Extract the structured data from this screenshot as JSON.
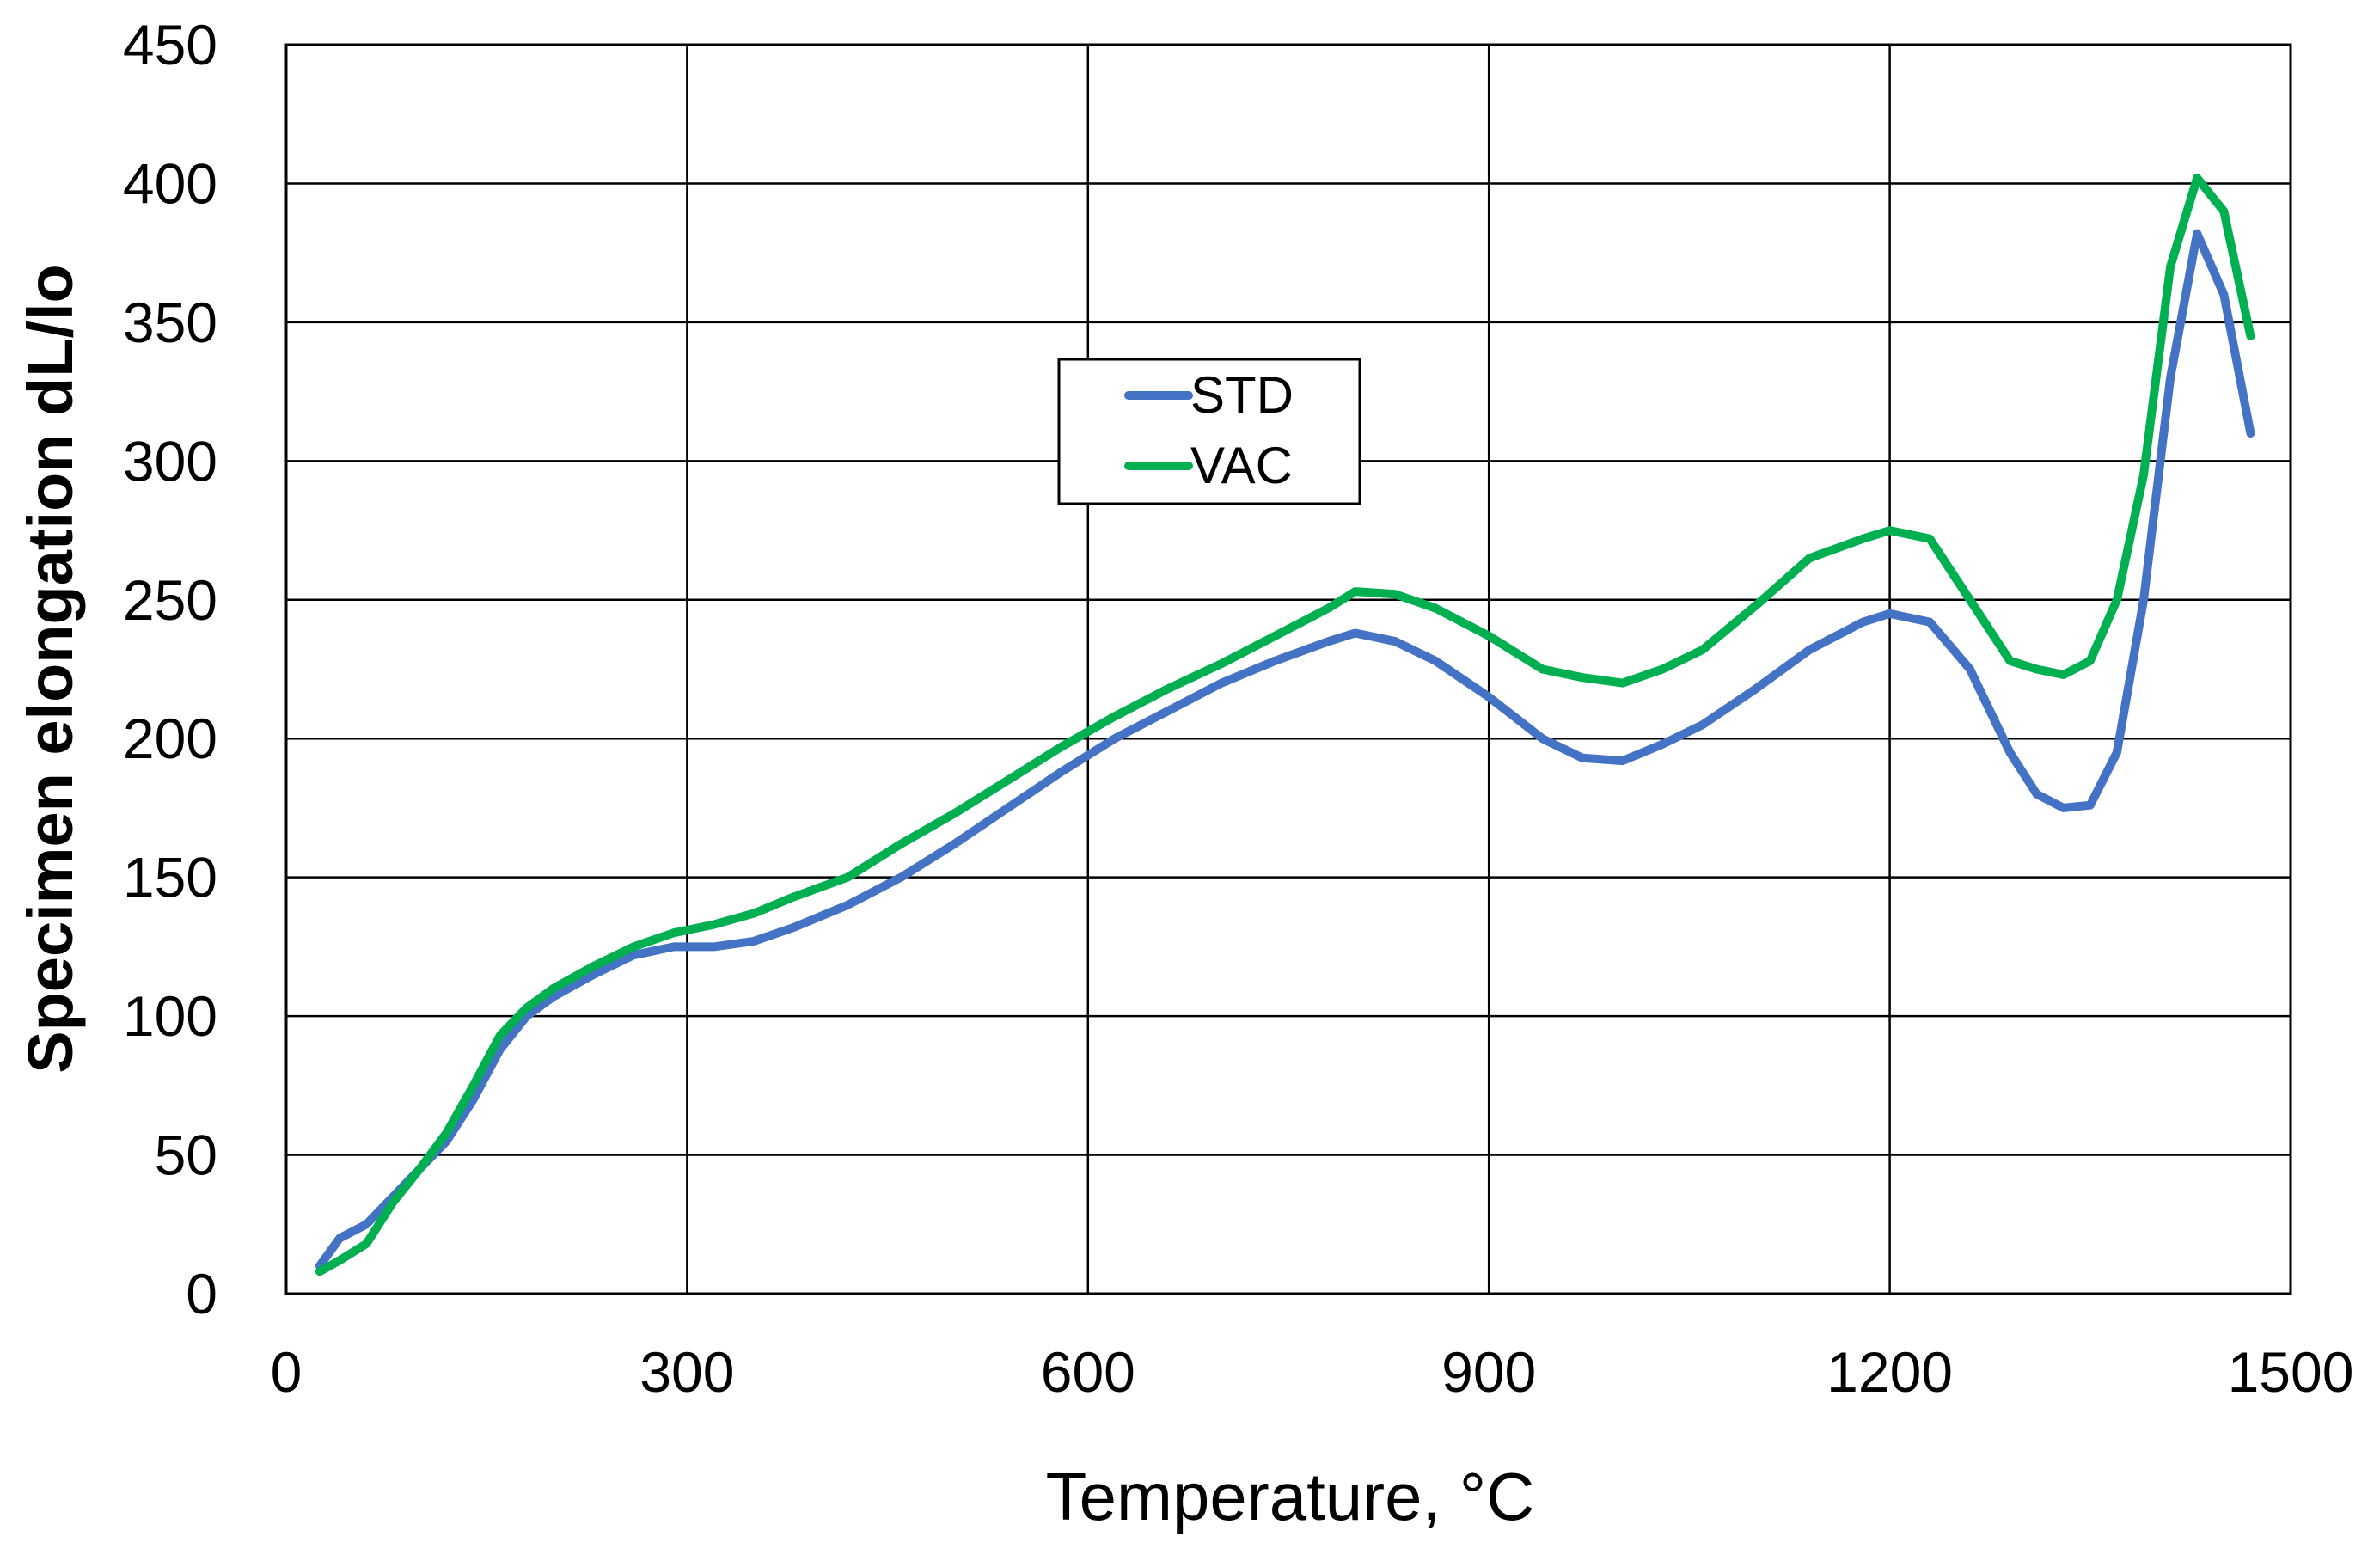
{
  "chart_data": {
    "type": "line",
    "title": "",
    "xlabel": "Temperature, °C",
    "ylabel": "Specimen elongation dL/lo",
    "xlim": [
      0,
      1500
    ],
    "ylim": [
      0,
      450
    ],
    "xticks": [
      0,
      300,
      600,
      900,
      1200,
      1500
    ],
    "yticks": [
      0,
      50,
      100,
      150,
      200,
      250,
      300,
      350,
      400,
      450
    ],
    "xtick_labels": [
      "0",
      "300",
      "600",
      "900",
      "1200",
      "1500"
    ],
    "ytick_labels": [
      "0",
      "50",
      "100",
      "150",
      "200",
      "250",
      "300",
      "350",
      "400",
      "450"
    ],
    "grid": true,
    "legend_position": "center",
    "series": [
      {
        "name": "STD",
        "color": "#4472C4",
        "x": [
          25,
          40,
          60,
          80,
          100,
          120,
          140,
          160,
          180,
          200,
          230,
          260,
          290,
          320,
          350,
          380,
          420,
          460,
          500,
          540,
          580,
          620,
          660,
          700,
          740,
          780,
          800,
          830,
          860,
          900,
          940,
          970,
          1000,
          1030,
          1060,
          1100,
          1140,
          1180,
          1200,
          1230,
          1260,
          1290,
          1310,
          1330,
          1350,
          1370,
          1390,
          1410,
          1430,
          1450,
          1470
        ],
        "y": [
          10,
          20,
          25,
          35,
          45,
          55,
          70,
          88,
          100,
          107,
          115,
          122,
          125,
          125,
          127,
          132,
          140,
          150,
          162,
          175,
          188,
          200,
          210,
          220,
          228,
          235,
          238,
          235,
          228,
          215,
          200,
          193,
          192,
          198,
          205,
          218,
          232,
          242,
          245,
          242,
          225,
          195,
          180,
          175,
          176,
          195,
          250,
          330,
          382,
          360,
          310
        ]
      },
      {
        "name": "VAC",
        "color": "#00B050",
        "x": [
          25,
          40,
          60,
          80,
          100,
          120,
          140,
          160,
          180,
          200,
          230,
          260,
          290,
          320,
          350,
          380,
          420,
          460,
          500,
          540,
          580,
          620,
          660,
          700,
          740,
          780,
          800,
          830,
          860,
          900,
          940,
          970,
          1000,
          1030,
          1060,
          1100,
          1140,
          1180,
          1200,
          1230,
          1260,
          1290,
          1310,
          1330,
          1350,
          1370,
          1390,
          1410,
          1430,
          1450,
          1470
        ],
        "y": [
          8,
          12,
          18,
          33,
          45,
          58,
          75,
          93,
          103,
          110,
          118,
          125,
          130,
          133,
          137,
          143,
          150,
          162,
          173,
          185,
          197,
          208,
          218,
          227,
          237,
          247,
          253,
          252,
          247,
          237,
          225,
          222,
          220,
          225,
          232,
          248,
          265,
          272,
          275,
          272,
          250,
          228,
          225,
          223,
          228,
          250,
          295,
          370,
          402,
          390,
          345
        ]
      }
    ]
  }
}
